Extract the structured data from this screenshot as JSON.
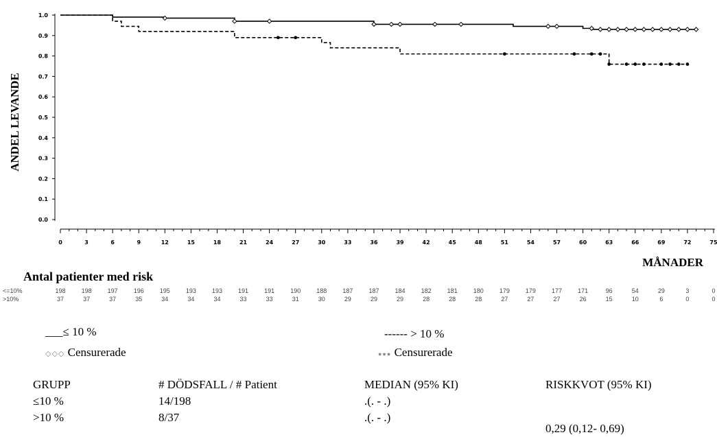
{
  "chart_data": {
    "type": "line",
    "ylabel": "ANDEL LEVANDE",
    "xlabel": "MÅNADER",
    "ylim": [
      0.0,
      1.0
    ],
    "xlim": [
      0,
      75
    ],
    "yticks": [
      "0.0",
      "0.1",
      "0.2",
      "0.3",
      "0.4",
      "0.5",
      "0.6",
      "0.7",
      "0.8",
      "0.9",
      "1.0"
    ],
    "xticks": [
      "0",
      "3",
      "6",
      "9",
      "12",
      "15",
      "18",
      "21",
      "24",
      "27",
      "30",
      "33",
      "36",
      "39",
      "42",
      "45",
      "48",
      "51",
      "54",
      "57",
      "60",
      "63",
      "66",
      "69",
      "72",
      "75"
    ],
    "series": [
      {
        "name": "≤ 10 %",
        "style": "solid",
        "color": "#000000",
        "x": [
          0,
          6,
          12,
          20,
          36,
          52,
          60,
          61,
          62,
          73
        ],
        "y": [
          1.0,
          0.99,
          0.985,
          0.97,
          0.955,
          0.945,
          0.935,
          0.93,
          0.93,
          0.93
        ],
        "censor_x": [
          12,
          20,
          24,
          36,
          38,
          39,
          43,
          46,
          56,
          57,
          61,
          62,
          63,
          64,
          65,
          66,
          67,
          68,
          69,
          70,
          71,
          72,
          73
        ],
        "censor_y": [
          0.985,
          0.97,
          0.97,
          0.955,
          0.955,
          0.955,
          0.955,
          0.955,
          0.945,
          0.945,
          0.935,
          0.93,
          0.93,
          0.93,
          0.93,
          0.93,
          0.93,
          0.93,
          0.93,
          0.93,
          0.93,
          0.93,
          0.93
        ]
      },
      {
        "name": "> 10 %",
        "style": "dashed",
        "color": "#000000",
        "x": [
          0,
          6,
          7,
          9,
          20,
          30,
          31,
          39,
          62,
          63,
          72
        ],
        "y": [
          1.0,
          0.97,
          0.945,
          0.92,
          0.89,
          0.865,
          0.84,
          0.81,
          0.81,
          0.76,
          0.76
        ],
        "censor_x": [
          25,
          27,
          51,
          59,
          61,
          62,
          63,
          65,
          66,
          67,
          69,
          70,
          71,
          72
        ],
        "censor_y": [
          0.89,
          0.89,
          0.81,
          0.81,
          0.81,
          0.81,
          0.76,
          0.76,
          0.76,
          0.76,
          0.76,
          0.76,
          0.76,
          0.76
        ]
      }
    ]
  },
  "risk_table": {
    "title": "Antal patienter med risk",
    "rows": [
      {
        "label": "<=10%",
        "values": [
          "198",
          "198",
          "197",
          "196",
          "195",
          "193",
          "193",
          "191",
          "191",
          "190",
          "188",
          "187",
          "187",
          "184",
          "182",
          "181",
          "180",
          "179",
          "179",
          "177",
          "171",
          "96",
          "54",
          "29",
          "3",
          "0"
        ]
      },
      {
        "label": ">10%",
        "values": [
          "37",
          "37",
          "37",
          "35",
          "34",
          "34",
          "34",
          "33",
          "33",
          "31",
          "30",
          "29",
          "29",
          "29",
          "28",
          "28",
          "28",
          "27",
          "27",
          "27",
          "26",
          "15",
          "10",
          "6",
          "0",
          "0"
        ]
      }
    ]
  },
  "legend": {
    "left_line": "___≤ 10 %",
    "left_censor_symbols": "◇◇◇",
    "left_censor_label": "Censurerade",
    "right_line": "------ > 10 %",
    "right_censor_symbols": "●●●",
    "right_censor_label": "Censurerade"
  },
  "summary_table": {
    "headers": [
      "GRUPP",
      "# DÖDSFALL / # Patient",
      "MEDIAN (95% KI)",
      "RISKKVOT (95% KI)"
    ],
    "rows": [
      [
        "≤10 %",
        "14/198",
        ".(. - .)",
        ""
      ],
      [
        ">10 %",
        "8/37",
        ".(. - .)",
        ""
      ]
    ],
    "riskkvot_value": "0,29 (0,12- 0,69)"
  }
}
